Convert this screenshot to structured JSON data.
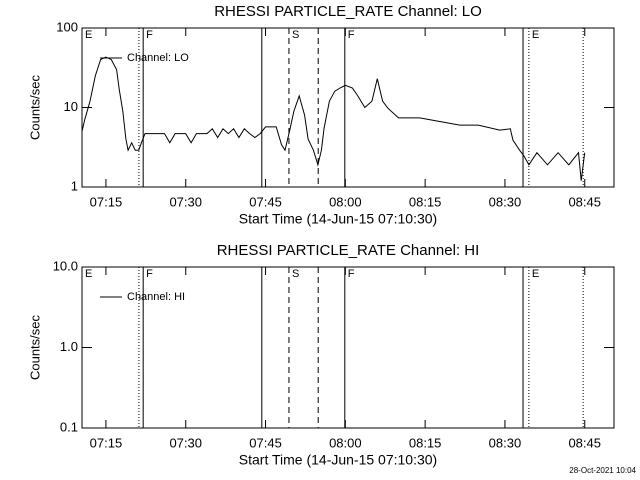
{
  "chart_data": [
    {
      "type": "line",
      "title": "RHESSI PARTICLE_RATE Channel: LO",
      "ylabel": "Counts/sec",
      "xlabel": "Start Time (14-Jun-15 07:10:30)",
      "log_y": true,
      "ylim": [
        1,
        100
      ],
      "yticks": [
        1,
        10,
        100
      ],
      "xlim": [
        "07:10:30",
        "08:50:30"
      ],
      "xticks": [
        "07:15",
        "07:30",
        "07:45",
        "08:00",
        "08:15",
        "08:30",
        "08:45"
      ],
      "x": [
        "07:10:30",
        "07:11:00",
        "07:12:00",
        "07:13:00",
        "07:14:00",
        "07:15:00",
        "07:16:00",
        "07:17:00",
        "07:17:30",
        "07:18:10",
        "07:18:45",
        "07:19:10",
        "07:19:50",
        "07:20:30",
        "07:21:10",
        "07:21:40",
        "07:22:20",
        "07:24:00",
        "07:26:00",
        "07:27:00",
        "07:28:00",
        "07:30:00",
        "07:31:00",
        "07:32:00",
        "07:34:00",
        "07:35:00",
        "07:36:00",
        "07:37:00",
        "07:38:00",
        "07:39:00",
        "07:40:00",
        "07:41:00",
        "07:42:00",
        "07:43:00",
        "07:44:00",
        "07:45:00",
        "07:47:00",
        "07:48:00",
        "07:48:40",
        "07:49:30",
        "07:50:20",
        "07:51:20",
        "07:52:20",
        "07:53:00",
        "07:54:00",
        "07:54:50",
        "07:55:30",
        "07:56:00",
        "07:57:00",
        "07:58:00",
        "07:59:00",
        "08:00:00",
        "08:01:20",
        "08:02:20",
        "08:03:40",
        "08:05:00",
        "08:06:00",
        "08:07:00",
        "08:08:00",
        "08:10:00",
        "08:14:00",
        "08:18:00",
        "08:21:30",
        "08:25:00",
        "08:29:00",
        "08:31:00",
        "08:31:30",
        "08:32:45",
        "08:33:30",
        "08:34:30",
        "08:36:00",
        "08:38:00",
        "08:40:00",
        "08:42:00",
        "08:43:50",
        "08:44:20",
        "08:45:00"
      ],
      "series": [
        {
          "name": "Channel: LO",
          "color": "#000000",
          "values": [
            5.0,
            7,
            12,
            25,
            40,
            43,
            40,
            30,
            17,
            9,
            4,
            2.9,
            3.6,
            2.9,
            2.9,
            3.6,
            4.7,
            4.7,
            4.7,
            3.6,
            4.7,
            4.7,
            3.6,
            4.7,
            4.7,
            5.4,
            4.2,
            5.4,
            4.7,
            5.4,
            4.2,
            5.4,
            4.7,
            4.2,
            4.7,
            5.7,
            5.7,
            3.4,
            2.9,
            5,
            9,
            14,
            8,
            4,
            2.9,
            1.9,
            2.9,
            5.5,
            12,
            16,
            17.6,
            19,
            17.6,
            14,
            10,
            12,
            23,
            12,
            9.8,
            7.4,
            7.4,
            6.6,
            6,
            6,
            5.2,
            5.4,
            3.9,
            2.9,
            2.5,
            1.9,
            2.7,
            1.9,
            2.7,
            1.9,
            2.7,
            1.2,
            2.7
          ]
        }
      ],
      "annotations": [
        {
          "x": "07:10:30",
          "style": "solid",
          "label": "E"
        },
        {
          "x": "07:21:12",
          "style": "dotted"
        },
        {
          "x": "07:22:00",
          "style": "solid",
          "label": "F"
        },
        {
          "x": "07:44:18",
          "style": "solid"
        },
        {
          "x": "07:49:24",
          "style": "dashed",
          "label": "S"
        },
        {
          "x": "07:54:54",
          "style": "dashed"
        },
        {
          "x": "07:59:54",
          "style": "solid",
          "label": "F"
        },
        {
          "x": "08:33:24",
          "style": "solid"
        },
        {
          "x": "08:34:30",
          "style": "dotted",
          "label": "E"
        },
        {
          "x": "08:44:42",
          "style": "dotted"
        }
      ]
    },
    {
      "type": "line",
      "title": "RHESSI PARTICLE_RATE Channel: HI",
      "ylabel": "Counts/sec",
      "xlabel": "Start Time (14-Jun-15 07:10:30)",
      "log_y": true,
      "ylim": [
        0.1,
        10
      ],
      "yticks": [
        0.1,
        {
          "value": 1,
          "label": "1.0"
        },
        {
          "value": 10,
          "label": "10.0"
        }
      ],
      "xlim": [
        "07:10:30",
        "08:50:30"
      ],
      "xticks": [
        "07:15",
        "07:30",
        "07:45",
        "08:00",
        "08:15",
        "08:30",
        "08:45"
      ],
      "x": [],
      "series": [
        {
          "name": "Channel: HI",
          "color": "#000000",
          "values": []
        }
      ],
      "annotations": [
        {
          "x": "07:10:30",
          "style": "solid",
          "label": "E"
        },
        {
          "x": "07:21:12",
          "style": "dotted"
        },
        {
          "x": "07:22:00",
          "style": "solid",
          "label": "F"
        },
        {
          "x": "07:44:18",
          "style": "solid"
        },
        {
          "x": "07:49:24",
          "style": "dashed",
          "label": "S"
        },
        {
          "x": "07:54:54",
          "style": "dashed"
        },
        {
          "x": "07:59:54",
          "style": "solid",
          "label": "F"
        },
        {
          "x": "08:33:24",
          "style": "solid"
        },
        {
          "x": "08:34:30",
          "style": "dotted",
          "label": "E"
        },
        {
          "x": "08:44:42",
          "style": "dotted"
        }
      ]
    }
  ],
  "footer": "28-Oct-2021 10:04"
}
